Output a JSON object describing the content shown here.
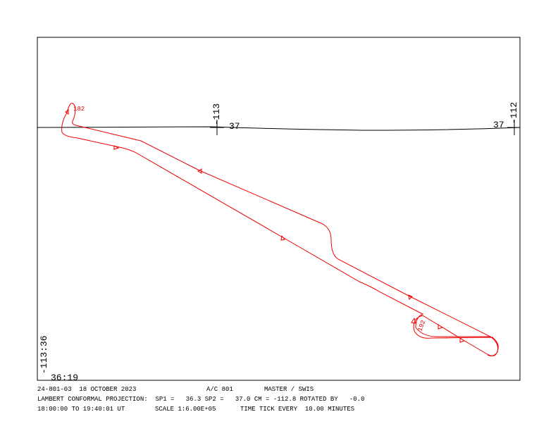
{
  "map": {
    "grid_labels": {
      "lon_left": "-113",
      "lat_left": "37",
      "lon_right": "-112",
      "lat_right": "37"
    },
    "corner_labels": {
      "lon": "-113:36",
      "lat": "36:19"
    },
    "track_labels": {
      "start": "182",
      "end": "192"
    }
  },
  "footer": {
    "line1": {
      "flight": "24-801-03  18 OCTOBER 2023",
      "aircraft": "A/C 801",
      "system": "MASTER / SWIS"
    },
    "line2": {
      "projection": "LAMBERT CONFORMAL PROJECTION:  SP1 =   36.3 SP2 =   37.0 CM = -112.8 ROTATED BY   -0.0"
    },
    "line3": {
      "time": "18:00:00 TO 19:40:01 UT",
      "scale": "SCALE 1:6.00E+05",
      "tick": "TIME TICK EVERY  10.00 MINUTES"
    }
  }
}
